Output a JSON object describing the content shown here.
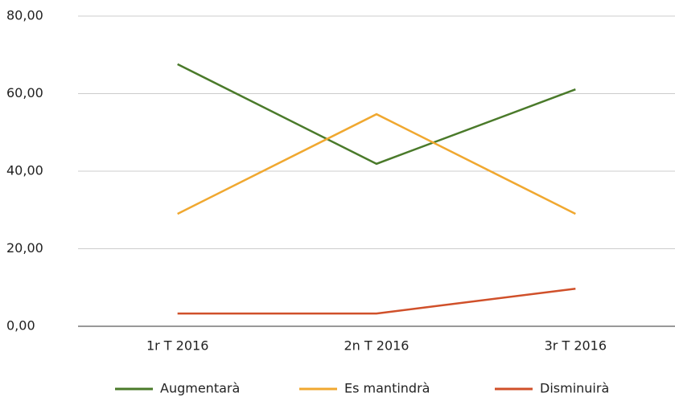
{
  "chart_data": {
    "type": "line",
    "categories": [
      "1r T 2016",
      "2n T 2016",
      "3r T 2016"
    ],
    "series": [
      {
        "name": "Augmentarà",
        "color": "#4a7a2a",
        "values": [
          67.6,
          41.9,
          61.1
        ]
      },
      {
        "name": "Es mantindrà",
        "color": "#f0a830",
        "values": [
          29.0,
          54.7,
          29.0
        ]
      },
      {
        "name": "Disminuirà",
        "color": "#d0502a",
        "values": [
          3.3,
          3.3,
          9.7
        ]
      }
    ],
    "ylim": [
      0,
      80
    ],
    "yticks": [
      {
        "value": 0,
        "label": "0,00"
      },
      {
        "value": 20,
        "label": "20,00"
      },
      {
        "value": 40,
        "label": "40,00"
      },
      {
        "value": 60,
        "label": "60,00"
      },
      {
        "value": 80,
        "label": "80,00"
      }
    ],
    "grid": true,
    "legend": "bottom"
  }
}
